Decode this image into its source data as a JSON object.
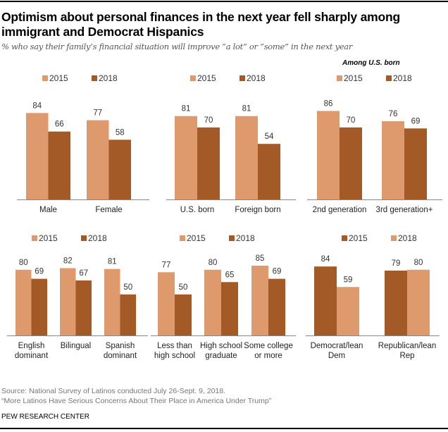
{
  "title": "Optimism about personal finances in the next year fell sharply among immigrant and Democrat Hispanics",
  "subtitle": "% who say their family’s financial situation will improve “a lot” or “some” in the next year",
  "source": "Source: National Survey of Latinos conducted July 26-Sept. 9, 2018.",
  "report": "“More Latinos Have Serious Concerns About Their Place in America Under Trump”",
  "org": "PEW RESEARCH CENTER",
  "colors": {
    "light": "#DE9A6C",
    "dark": "#A35A27"
  },
  "chart_data": [
    {
      "type": "bar",
      "categories": [
        "Male",
        "Female"
      ],
      "series": [
        {
          "name": "2015",
          "values": [
            84,
            77
          ],
          "color": "#DE9A6C"
        },
        {
          "name": "2018",
          "values": [
            66,
            58
          ],
          "color": "#A35A27"
        }
      ]
    },
    {
      "type": "bar",
      "categories": [
        "U.S. born",
        "Foreign born"
      ],
      "series": [
        {
          "name": "2015",
          "values": [
            81,
            81
          ],
          "color": "#DE9A6C"
        },
        {
          "name": "2018",
          "values": [
            70,
            54
          ],
          "color": "#A35A27"
        }
      ]
    },
    {
      "type": "bar",
      "subtitle": "Among U.S. born",
      "categories": [
        "2nd generation",
        "3rd generation+"
      ],
      "series": [
        {
          "name": "2015",
          "values": [
            86,
            76
          ],
          "color": "#DE9A6C"
        },
        {
          "name": "2018",
          "values": [
            70,
            69
          ],
          "color": "#A35A27"
        }
      ]
    },
    {
      "type": "bar",
      "categories": [
        "English dominant",
        "Bilingual",
        "Spanish dominant"
      ],
      "series": [
        {
          "name": "2015",
          "values": [
            80,
            82,
            81
          ],
          "color": "#DE9A6C"
        },
        {
          "name": "2018",
          "values": [
            69,
            67,
            50
          ],
          "color": "#A35A27"
        }
      ]
    },
    {
      "type": "bar",
      "categories": [
        "Less than high school",
        "High school graduate",
        "Some college or more"
      ],
      "series": [
        {
          "name": "2015",
          "values": [
            77,
            80,
            85
          ],
          "color": "#DE9A6C"
        },
        {
          "name": "2018",
          "values": [
            50,
            65,
            69
          ],
          "color": "#A35A27"
        }
      ]
    },
    {
      "type": "bar",
      "categories": [
        "Democrat/lean Dem",
        "Republican/lean Rep"
      ],
      "series": [
        {
          "name": "2015",
          "values": [
            84,
            79
          ],
          "color": "#A35A27"
        },
        {
          "name": "2018",
          "values": [
            59,
            80
          ],
          "color": "#DE9A6C"
        }
      ]
    }
  ]
}
